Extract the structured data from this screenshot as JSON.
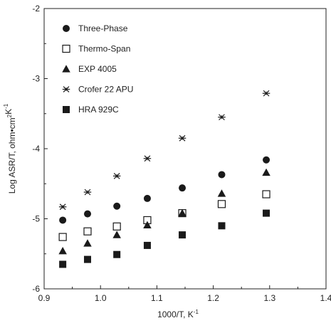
{
  "chart_data": {
    "type": "scatter",
    "title": "",
    "xlabel_main": "1000/T, K",
    "xlabel_sup": "-1",
    "ylabel_parts": [
      {
        "t": "Log ASR/T, ohm•cm",
        "sup": false
      },
      {
        "t": "2",
        "sup": true
      },
      {
        "t": "K",
        "sup": false
      },
      {
        "t": "-1",
        "sup": true
      }
    ],
    "xlim": [
      0.9,
      1.4
    ],
    "ylim": [
      -6,
      -2
    ],
    "xticks": [
      0.9,
      1.0,
      1.1,
      1.2,
      1.3,
      1.4
    ],
    "xtick_labels": [
      "0.9",
      "1.0",
      "1.1",
      "1.2",
      "1.3",
      "1.4"
    ],
    "yticks": [
      -6,
      -5,
      -4,
      -3,
      -2
    ],
    "ytick_labels": [
      "-6",
      "-5",
      "-4",
      "-3",
      "-2"
    ],
    "grid": false,
    "legend_position": "top-left",
    "series": [
      {
        "name": "Three-Phase",
        "marker": "circle",
        "x": [
          0.933,
          0.977,
          1.029,
          1.083,
          1.145,
          1.215,
          1.294
        ],
        "y": [
          -5.02,
          -4.93,
          -4.82,
          -4.71,
          -4.56,
          -4.37,
          -4.16
        ]
      },
      {
        "name": "Thermo-Span",
        "marker": "open-square",
        "x": [
          0.933,
          0.977,
          1.029,
          1.083,
          1.145,
          1.215,
          1.294
        ],
        "y": [
          -5.26,
          -5.18,
          -5.11,
          -5.02,
          -4.92,
          -4.79,
          -4.65
        ]
      },
      {
        "name": "EXP 4005",
        "marker": "triangle",
        "x": [
          0.933,
          0.977,
          1.029,
          1.083,
          1.145,
          1.215,
          1.294
        ],
        "y": [
          -5.46,
          -5.35,
          -5.23,
          -5.09,
          -4.92,
          -4.64,
          -4.34
        ]
      },
      {
        "name": "Crofer 22 APU",
        "marker": "asterisk",
        "x": [
          0.933,
          0.977,
          1.029,
          1.083,
          1.145,
          1.215,
          1.294
        ],
        "y": [
          -4.83,
          -4.62,
          -4.39,
          -4.14,
          -3.85,
          -3.55,
          -3.21
        ]
      },
      {
        "name": "HRA 929C",
        "marker": "square",
        "x": [
          0.933,
          0.977,
          1.029,
          1.083,
          1.145,
          1.215,
          1.294
        ],
        "y": [
          -5.65,
          -5.58,
          -5.51,
          -5.38,
          -5.23,
          -5.1,
          -4.92
        ]
      }
    ]
  }
}
